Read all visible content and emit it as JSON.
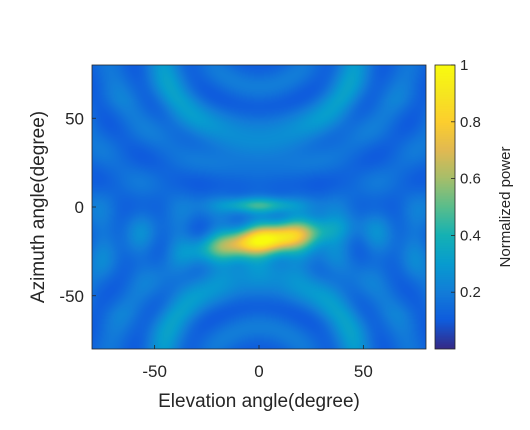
{
  "chart_data": {
    "type": "heatmap",
    "xlabel": "Elevation angle(degree)",
    "ylabel": "Azimuth angle(degree)",
    "xlim": [
      -80,
      80
    ],
    "ylim": [
      -80,
      80
    ],
    "x_ticks": [
      -50,
      0,
      50
    ],
    "y_ticks": [
      50,
      0,
      -50
    ],
    "colorbar": {
      "label": "Normalized power",
      "range": [
        0,
        1
      ],
      "ticks": [
        0.2,
        0.4,
        0.6,
        0.8,
        1
      ],
      "colormap": "parula"
    },
    "features": [
      {
        "kind": "main-lobe",
        "elevation": 5,
        "azimuth": -18,
        "value": 0.85
      },
      {
        "kind": "side-lobe",
        "elevation": 0,
        "azimuth": 0,
        "value": 0.45
      },
      {
        "kind": "arc",
        "center_azimuth": 80,
        "value": 0.3
      },
      {
        "kind": "arc",
        "center_azimuth": -80,
        "value": 0.3
      }
    ]
  }
}
